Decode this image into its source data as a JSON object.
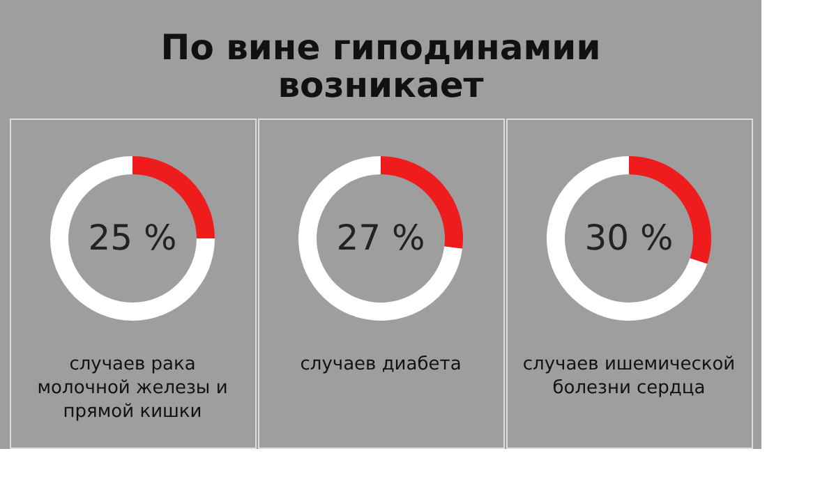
{
  "chart_data": [
    {
      "type": "donut",
      "title": "По вине гиподинамии возникает",
      "categories": [
        null,
        null
      ],
      "values": [
        25,
        75
      ],
      "colors": [
        "#ee1c1c",
        "#ffffff"
      ],
      "value_labels": [
        "25 %",
        null
      ],
      "annotations": [
        "случаев рака молочной железы и прямой кишки"
      ]
    },
    {
      "type": "donut",
      "categories": [
        null,
        null
      ],
      "values": [
        27,
        73
      ],
      "colors": [
        "#ee1c1c",
        "#ffffff"
      ],
      "value_labels": [
        "27 %",
        null
      ],
      "annotations": [
        "случаев диабета"
      ]
    },
    {
      "type": "donut",
      "categories": [
        null,
        null
      ],
      "values": [
        30,
        70
      ],
      "colors": [
        "#ee1c1c",
        "#ffffff"
      ],
      "value_labels": [
        "30 %",
        null
      ],
      "annotations": [
        "случаев ишемической болезни сердца"
      ]
    }
  ]
}
